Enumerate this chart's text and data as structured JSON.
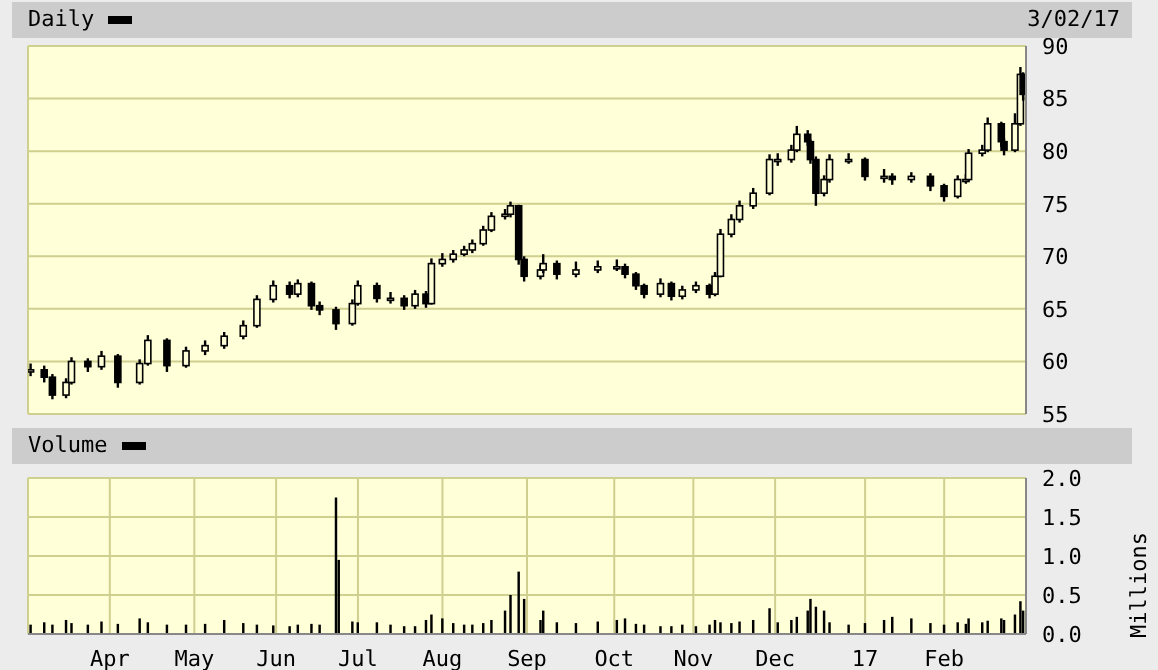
{
  "chart_data": [
    {
      "type": "candlestick",
      "title": "Daily",
      "annotations": [
        "3/02/17"
      ],
      "color": "#000000",
      "x": [
        "2016-03-03",
        "2016-03-08",
        "2016-03-11",
        "2016-03-16",
        "2016-03-18",
        "2016-03-24",
        "2016-03-29",
        "2016-04-04",
        "2016-04-12",
        "2016-04-15",
        "2016-04-22",
        "2016-04-29",
        "2016-05-06",
        "2016-05-13",
        "2016-05-20",
        "2016-05-25",
        "2016-05-31",
        "2016-06-06",
        "2016-06-09",
        "2016-06-14",
        "2016-06-17",
        "2016-06-23",
        "2016-06-29",
        "2016-07-01",
        "2016-07-08",
        "2016-07-13",
        "2016-07-18",
        "2016-07-22",
        "2016-07-26",
        "2016-07-28",
        "2016-08-01",
        "2016-08-05",
        "2016-08-09",
        "2016-08-12",
        "2016-08-16",
        "2016-08-19",
        "2016-08-24",
        "2016-08-26",
        "2016-08-29",
        "2016-08-31",
        "2016-09-06",
        "2016-09-07",
        "2016-09-12",
        "2016-09-19",
        "2016-09-27",
        "2016-10-04",
        "2016-10-07",
        "2016-10-11",
        "2016-10-14",
        "2016-10-20",
        "2016-10-24",
        "2016-10-28",
        "2016-11-02",
        "2016-11-07",
        "2016-11-09",
        "2016-11-11",
        "2016-11-15",
        "2016-11-18",
        "2016-11-23",
        "2016-11-29",
        "2016-12-02",
        "2016-12-07",
        "2016-12-09",
        "2016-12-13",
        "2016-12-14",
        "2016-12-16",
        "2016-12-19",
        "2016-12-21",
        "2016-12-28",
        "2017-01-03",
        "2017-01-10",
        "2017-01-13",
        "2017-01-20",
        "2017-01-27",
        "2017-02-01",
        "2017-02-06",
        "2017-02-09",
        "2017-02-10",
        "2017-02-15",
        "2017-02-17",
        "2017-02-22",
        "2017-02-23",
        "2017-02-27",
        "2017-03-01",
        "2017-03-02"
      ],
      "ohlc": [
        [
          59.0,
          59.8,
          58.6,
          59.2
        ],
        [
          59.2,
          59.6,
          58.0,
          58.5
        ],
        [
          58.5,
          58.8,
          56.4,
          56.8
        ],
        [
          56.8,
          58.4,
          56.5,
          58.0
        ],
        [
          58.0,
          60.4,
          57.8,
          60.0
        ],
        [
          60.0,
          60.3,
          59.0,
          59.5
        ],
        [
          59.5,
          61.0,
          59.2,
          60.5
        ],
        [
          60.5,
          60.7,
          57.5,
          58.0
        ],
        [
          58.0,
          60.2,
          57.8,
          59.8
        ],
        [
          59.8,
          62.5,
          59.6,
          62.0
        ],
        [
          62.0,
          62.2,
          59.0,
          59.6
        ],
        [
          59.6,
          61.4,
          59.4,
          61.0
        ],
        [
          61.0,
          62.0,
          60.6,
          61.5
        ],
        [
          61.5,
          62.8,
          61.2,
          62.4
        ],
        [
          62.4,
          63.9,
          62.1,
          63.4
        ],
        [
          63.4,
          66.3,
          63.2,
          65.9
        ],
        [
          65.9,
          67.7,
          65.6,
          67.2
        ],
        [
          67.2,
          67.6,
          66.0,
          66.4
        ],
        [
          66.4,
          67.8,
          66.1,
          67.4
        ],
        [
          67.4,
          67.6,
          64.9,
          65.3
        ],
        [
          65.3,
          65.7,
          64.4,
          64.9
        ],
        [
          64.9,
          65.2,
          63.0,
          63.6
        ],
        [
          63.6,
          65.9,
          63.4,
          65.5
        ],
        [
          65.5,
          67.7,
          65.3,
          67.2
        ],
        [
          67.2,
          67.5,
          65.6,
          66.0
        ],
        [
          66.0,
          66.6,
          65.5,
          66.0
        ],
        [
          66.0,
          66.3,
          64.9,
          65.3
        ],
        [
          65.3,
          66.8,
          65.0,
          66.4
        ],
        [
          66.4,
          66.7,
          65.1,
          65.5
        ],
        [
          65.5,
          69.8,
          65.4,
          69.3
        ],
        [
          69.3,
          70.3,
          69.0,
          69.7
        ],
        [
          69.7,
          70.6,
          69.4,
          70.2
        ],
        [
          70.2,
          71.0,
          70.0,
          70.6
        ],
        [
          70.6,
          71.6,
          70.3,
          71.2
        ],
        [
          71.2,
          72.9,
          71.0,
          72.5
        ],
        [
          72.5,
          74.2,
          72.3,
          73.8
        ],
        [
          73.8,
          74.5,
          73.5,
          74.0
        ],
        [
          74.0,
          75.2,
          73.7,
          74.8
        ],
        [
          74.8,
          74.9,
          69.2,
          69.7
        ],
        [
          69.7,
          70.0,
          67.6,
          68.1
        ],
        [
          68.1,
          69.2,
          67.8,
          68.7
        ],
        [
          68.7,
          70.2,
          68.4,
          69.3
        ],
        [
          69.3,
          69.6,
          67.8,
          68.3
        ],
        [
          68.3,
          69.5,
          68.0,
          68.7
        ],
        [
          68.7,
          69.6,
          68.4,
          69.0
        ],
        [
          69.0,
          69.7,
          68.6,
          69.0
        ],
        [
          69.0,
          69.3,
          67.9,
          68.3
        ],
        [
          68.3,
          68.5,
          66.8,
          67.2
        ],
        [
          67.2,
          67.4,
          66.0,
          66.4
        ],
        [
          66.4,
          67.9,
          66.1,
          67.4
        ],
        [
          67.4,
          67.6,
          65.8,
          66.2
        ],
        [
          66.2,
          67.2,
          65.9,
          66.8
        ],
        [
          66.8,
          67.6,
          66.5,
          67.2
        ],
        [
          67.2,
          67.4,
          66.0,
          66.4
        ],
        [
          66.4,
          68.5,
          66.2,
          68.1
        ],
        [
          68.1,
          72.6,
          68.0,
          72.1
        ],
        [
          72.1,
          74.0,
          71.8,
          73.5
        ],
        [
          73.5,
          75.3,
          73.2,
          74.8
        ],
        [
          74.8,
          76.5,
          74.5,
          76.0
        ],
        [
          76.0,
          79.7,
          75.8,
          79.2
        ],
        [
          79.2,
          79.8,
          78.6,
          79.2
        ],
        [
          79.2,
          80.6,
          78.9,
          80.1
        ],
        [
          80.1,
          82.4,
          79.9,
          81.6
        ],
        [
          81.6,
          82.0,
          80.5,
          80.9
        ],
        [
          80.9,
          81.1,
          78.8,
          79.2
        ],
        [
          79.2,
          79.5,
          74.8,
          76.0
        ],
        [
          76.0,
          77.7,
          75.7,
          77.3
        ],
        [
          77.3,
          79.7,
          77.0,
          79.2
        ],
        [
          79.2,
          79.8,
          78.8,
          79.2
        ],
        [
          79.2,
          79.4,
          77.2,
          77.6
        ],
        [
          77.6,
          78.3,
          77.0,
          77.6
        ],
        [
          77.6,
          77.9,
          76.8,
          77.3
        ],
        [
          77.3,
          78.0,
          77.0,
          77.6
        ],
        [
          77.6,
          77.9,
          76.2,
          76.7
        ],
        [
          76.7,
          76.9,
          75.2,
          75.7
        ],
        [
          75.7,
          77.7,
          75.5,
          77.3
        ],
        [
          77.3,
          77.8,
          76.9,
          77.3
        ],
        [
          77.3,
          80.2,
          77.1,
          79.8
        ],
        [
          79.8,
          80.6,
          79.5,
          80.1
        ],
        [
          80.1,
          83.2,
          79.9,
          82.6
        ],
        [
          82.6,
          82.8,
          80.4,
          80.9
        ],
        [
          80.9,
          81.2,
          79.6,
          80.1
        ],
        [
          80.1,
          83.6,
          79.9,
          82.6
        ],
        [
          82.6,
          88.0,
          82.4,
          87.3
        ],
        [
          87.3,
          87.5,
          84.8,
          85.4
        ]
      ],
      "xlim": [
        "2016-03-02",
        "2017-03-03"
      ],
      "xticks": [
        {
          "value": "2016-04-01",
          "label": null
        },
        {
          "value": "2016-05-02",
          "label": null
        },
        {
          "value": "2016-06-01",
          "label": null
        },
        {
          "value": "2016-07-01",
          "label": null
        },
        {
          "value": "2016-08-01",
          "label": null
        },
        {
          "value": "2016-09-01",
          "label": null
        },
        {
          "value": "2016-10-03",
          "label": null
        },
        {
          "value": "2016-11-01",
          "label": null
        },
        {
          "value": "2016-12-01",
          "label": null
        },
        {
          "value": "2017-01-03",
          "label": null
        },
        {
          "value": "2017-02-01",
          "label": null
        }
      ],
      "ylim": [
        55,
        90
      ],
      "yticks": [
        55,
        60,
        65,
        70,
        75,
        80,
        85,
        90
      ],
      "grid": true,
      "tick_labels": "y"
    },
    {
      "type": "bar",
      "title": "Volume",
      "ylabel": "Millions",
      "color": "#000000",
      "x": [
        "2016-03-03",
        "2016-03-08",
        "2016-03-11",
        "2016-03-16",
        "2016-03-18",
        "2016-03-24",
        "2016-03-29",
        "2016-04-04",
        "2016-04-12",
        "2016-04-15",
        "2016-04-22",
        "2016-04-29",
        "2016-05-06",
        "2016-05-13",
        "2016-05-20",
        "2016-05-25",
        "2016-05-31",
        "2016-06-06",
        "2016-06-09",
        "2016-06-14",
        "2016-06-17",
        "2016-06-23",
        "2016-06-24",
        "2016-06-29",
        "2016-07-01",
        "2016-07-08",
        "2016-07-13",
        "2016-07-18",
        "2016-07-22",
        "2016-07-26",
        "2016-07-28",
        "2016-08-01",
        "2016-08-05",
        "2016-08-09",
        "2016-08-12",
        "2016-08-16",
        "2016-08-19",
        "2016-08-24",
        "2016-08-26",
        "2016-08-29",
        "2016-08-31",
        "2016-09-06",
        "2016-09-07",
        "2016-09-12",
        "2016-09-19",
        "2016-09-27",
        "2016-10-04",
        "2016-10-07",
        "2016-10-11",
        "2016-10-14",
        "2016-10-20",
        "2016-10-24",
        "2016-10-28",
        "2016-11-02",
        "2016-11-07",
        "2016-11-09",
        "2016-11-11",
        "2016-11-15",
        "2016-11-18",
        "2016-11-23",
        "2016-11-29",
        "2016-12-02",
        "2016-12-07",
        "2016-12-09",
        "2016-12-13",
        "2016-12-14",
        "2016-12-16",
        "2016-12-19",
        "2016-12-21",
        "2016-12-28",
        "2017-01-03",
        "2017-01-10",
        "2017-01-13",
        "2017-01-20",
        "2017-01-27",
        "2017-02-01",
        "2017-02-06",
        "2017-02-09",
        "2017-02-10",
        "2017-02-15",
        "2017-02-17",
        "2017-02-22",
        "2017-02-23",
        "2017-02-27",
        "2017-03-01",
        "2017-03-02"
      ],
      "values": [
        0.12,
        0.15,
        0.12,
        0.18,
        0.14,
        0.12,
        0.16,
        0.13,
        0.2,
        0.15,
        0.12,
        0.12,
        0.13,
        0.18,
        0.14,
        0.12,
        0.11,
        0.1,
        0.12,
        0.13,
        0.12,
        1.75,
        0.95,
        0.16,
        0.15,
        0.15,
        0.12,
        0.1,
        0.1,
        0.18,
        0.25,
        0.2,
        0.14,
        0.12,
        0.12,
        0.14,
        0.18,
        0.3,
        0.5,
        0.8,
        0.45,
        0.18,
        0.3,
        0.15,
        0.14,
        0.16,
        0.18,
        0.2,
        0.13,
        0.12,
        0.1,
        0.1,
        0.12,
        0.1,
        0.12,
        0.18,
        0.15,
        0.14,
        0.16,
        0.18,
        0.33,
        0.15,
        0.18,
        0.22,
        0.3,
        0.45,
        0.35,
        0.3,
        0.15,
        0.12,
        0.14,
        0.18,
        0.22,
        0.2,
        0.14,
        0.12,
        0.15,
        0.13,
        0.2,
        0.15,
        0.17,
        0.2,
        0.18,
        0.25,
        0.42,
        0.3
      ],
      "xlim": [
        "2016-03-02",
        "2017-03-03"
      ],
      "xticks": [
        {
          "value": "2016-04-01",
          "label": "Apr"
        },
        {
          "value": "2016-05-02",
          "label": "May"
        },
        {
          "value": "2016-06-01",
          "label": "Jun"
        },
        {
          "value": "2016-07-01",
          "label": "Jul"
        },
        {
          "value": "2016-08-01",
          "label": "Aug"
        },
        {
          "value": "2016-09-01",
          "label": "Sep"
        },
        {
          "value": "2016-10-03",
          "label": "Oct"
        },
        {
          "value": "2016-11-01",
          "label": "Nov"
        },
        {
          "value": "2016-12-01",
          "label": "Dec"
        },
        {
          "value": "2017-01-03",
          "label": "17"
        },
        {
          "value": "2017-02-01",
          "label": "Feb"
        }
      ],
      "ylim": [
        0,
        2
      ],
      "yticks": [
        {
          "value": 0,
          "label": "0.0"
        },
        {
          "value": 0.5,
          "label": "0.5"
        },
        {
          "value": 1,
          "label": "1.0"
        },
        {
          "value": 1.5,
          "label": "1.5"
        },
        {
          "value": 2,
          "label": "2.0"
        }
      ],
      "grid": true
    }
  ]
}
